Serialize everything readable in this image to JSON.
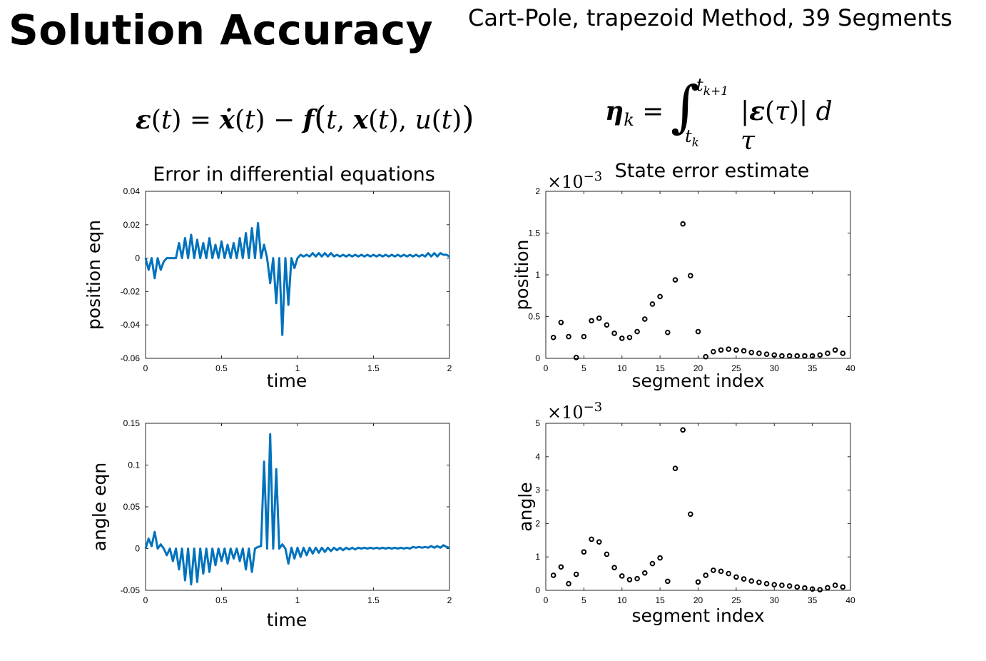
{
  "slide": {
    "title": "Solution Accuracy",
    "subtitle": "Cart-Pole, trapezoid Method, 39 Segments"
  },
  "colors": {
    "line": "#0072bd",
    "marker": "#000000",
    "axis": "#262626"
  },
  "chart_data": [
    {
      "type": "line",
      "title": "Error in differential equations",
      "xlabel": "time",
      "ylabel": "position eqn",
      "xlim": [
        0,
        2
      ],
      "ylim": [
        -0.06,
        0.04
      ],
      "xticks": [
        0,
        0.5,
        1,
        1.5,
        2
      ],
      "xtick_labels": [
        "0",
        "0.5",
        "1",
        "1.5",
        "2"
      ],
      "yticks": [
        -0.06,
        -0.04,
        -0.02,
        0,
        0.02,
        0.04
      ],
      "ytick_labels": [
        "-0.06",
        "-0.04",
        "-0.02",
        "0",
        "0.02",
        "0.04"
      ],
      "grid": false,
      "x": [
        0,
        0.02,
        0.04,
        0.06,
        0.08,
        0.1,
        0.12,
        0.14,
        0.16,
        0.18,
        0.2,
        0.22,
        0.24,
        0.26,
        0.28,
        0.3,
        0.32,
        0.34,
        0.36,
        0.38,
        0.4,
        0.42,
        0.44,
        0.46,
        0.48,
        0.5,
        0.52,
        0.54,
        0.56,
        0.58,
        0.6,
        0.62,
        0.64,
        0.66,
        0.68,
        0.7,
        0.72,
        0.74,
        0.76,
        0.78,
        0.8,
        0.82,
        0.84,
        0.86,
        0.88,
        0.9,
        0.92,
        0.94,
        0.96,
        0.98,
        1.0,
        1.02,
        1.04,
        1.06,
        1.08,
        1.1,
        1.12,
        1.14,
        1.16,
        1.18,
        1.2,
        1.22,
        1.24,
        1.26,
        1.28,
        1.3,
        1.32,
        1.34,
        1.36,
        1.38,
        1.4,
        1.42,
        1.44,
        1.46,
        1.48,
        1.5,
        1.52,
        1.54,
        1.56,
        1.58,
        1.6,
        1.62,
        1.64,
        1.66,
        1.68,
        1.7,
        1.72,
        1.74,
        1.76,
        1.78,
        1.8,
        1.82,
        1.84,
        1.86,
        1.88,
        1.9,
        1.92,
        1.94,
        1.96,
        1.98,
        2.0
      ],
      "y": [
        0,
        -0.007,
        0,
        -0.012,
        0,
        -0.007,
        -0.002,
        0,
        0,
        0,
        0,
        0.009,
        0,
        0.012,
        0,
        0.014,
        0,
        0.011,
        0,
        0.009,
        0,
        0.012,
        0,
        0.008,
        0,
        0.01,
        0,
        0.008,
        0,
        0.009,
        0,
        0.012,
        0,
        0.015,
        0,
        0.018,
        0,
        0.021,
        0,
        0.008,
        0,
        -0.015,
        0,
        -0.027,
        0,
        -0.046,
        0,
        -0.028,
        0,
        -0.006,
        0,
        0.002,
        0.001,
        0.002,
        0.001,
        0.003,
        0.001,
        0.003,
        0.001,
        0.003,
        0.001,
        0.003,
        0.001,
        0.002,
        0.001,
        0.002,
        0.001,
        0.002,
        0.001,
        0.002,
        0.001,
        0.002,
        0.001,
        0.002,
        0.001,
        0.002,
        0.001,
        0.002,
        0.001,
        0.002,
        0.001,
        0.002,
        0.001,
        0.002,
        0.001,
        0.002,
        0.001,
        0.002,
        0.001,
        0.002,
        0.001,
        0.002,
        0.001,
        0.003,
        0.001,
        0.003,
        0.001,
        0.003,
        0.002,
        0.002,
        0.001
      ]
    },
    {
      "type": "scatter",
      "title": "State error estimate",
      "xlabel": "segment index",
      "ylabel": "position",
      "exponent_label": "×10",
      "exponent": "−3",
      "xlim": [
        0,
        40
      ],
      "ylim": [
        0,
        2
      ],
      "xticks": [
        0,
        5,
        10,
        15,
        20,
        25,
        30,
        35,
        40
      ],
      "xtick_labels": [
        "0",
        "5",
        "10",
        "15",
        "20",
        "25",
        "30",
        "35",
        "40"
      ],
      "yticks": [
        0,
        0.5,
        1,
        1.5,
        2
      ],
      "ytick_labels": [
        "0",
        "0.5",
        "1",
        "1.5",
        "2"
      ],
      "grid": false,
      "x": [
        1,
        2,
        3,
        4,
        5,
        6,
        7,
        8,
        9,
        10,
        11,
        12,
        13,
        14,
        15,
        16,
        17,
        18,
        19,
        20,
        21,
        22,
        23,
        24,
        25,
        26,
        27,
        28,
        29,
        30,
        31,
        32,
        33,
        34,
        35,
        36,
        37,
        38,
        39
      ],
      "y": [
        0.25,
        0.43,
        0.26,
        0.01,
        0.26,
        0.45,
        0.48,
        0.4,
        0.3,
        0.24,
        0.25,
        0.32,
        0.47,
        0.65,
        0.74,
        0.31,
        0.94,
        1.61,
        0.99,
        0.32,
        0.02,
        0.08,
        0.1,
        0.11,
        0.1,
        0.09,
        0.07,
        0.06,
        0.05,
        0.04,
        0.03,
        0.03,
        0.03,
        0.03,
        0.03,
        0.04,
        0.06,
        0.1,
        0.06
      ]
    },
    {
      "type": "line",
      "xlabel": "time",
      "ylabel": "angle  eqn",
      "xlim": [
        0,
        2
      ],
      "ylim": [
        -0.05,
        0.15
      ],
      "xticks": [
        0,
        0.5,
        1,
        1.5,
        2
      ],
      "xtick_labels": [
        "0",
        "0.5",
        "1",
        "1.5",
        "2"
      ],
      "yticks": [
        -0.05,
        0,
        0.05,
        0.1,
        0.15
      ],
      "ytick_labels": [
        "-0.05",
        "0",
        "0.05",
        "0.1",
        "0.15"
      ],
      "grid": false,
      "x": [
        0,
        0.02,
        0.04,
        0.06,
        0.08,
        0.1,
        0.12,
        0.14,
        0.16,
        0.18,
        0.2,
        0.22,
        0.24,
        0.26,
        0.28,
        0.3,
        0.32,
        0.34,
        0.36,
        0.38,
        0.4,
        0.42,
        0.44,
        0.46,
        0.48,
        0.5,
        0.52,
        0.54,
        0.56,
        0.58,
        0.6,
        0.62,
        0.64,
        0.66,
        0.68,
        0.7,
        0.72,
        0.74,
        0.76,
        0.78,
        0.8,
        0.82,
        0.84,
        0.86,
        0.88,
        0.9,
        0.92,
        0.94,
        0.96,
        0.98,
        1.0,
        1.02,
        1.04,
        1.06,
        1.08,
        1.1,
        1.12,
        1.14,
        1.16,
        1.18,
        1.2,
        1.22,
        1.24,
        1.26,
        1.28,
        1.3,
        1.32,
        1.34,
        1.36,
        1.38,
        1.4,
        1.42,
        1.44,
        1.46,
        1.48,
        1.5,
        1.52,
        1.54,
        1.56,
        1.58,
        1.6,
        1.62,
        1.64,
        1.66,
        1.68,
        1.7,
        1.72,
        1.74,
        1.76,
        1.78,
        1.8,
        1.82,
        1.84,
        1.86,
        1.88,
        1.9,
        1.92,
        1.94,
        1.96,
        1.98,
        2.0
      ],
      "y": [
        0,
        0.012,
        0.003,
        0.02,
        0,
        0.005,
        0,
        -0.008,
        0,
        -0.015,
        0,
        -0.025,
        0,
        -0.038,
        0,
        -0.043,
        0,
        -0.04,
        0,
        -0.03,
        0,
        -0.028,
        0,
        -0.02,
        0,
        -0.015,
        0,
        -0.018,
        0,
        -0.012,
        0,
        -0.015,
        0,
        -0.025,
        0,
        -0.028,
        0,
        0.002,
        0.003,
        0.104,
        0,
        0.137,
        0,
        0.095,
        0,
        0.005,
        0,
        -0.018,
        0.001,
        -0.012,
        0.001,
        -0.01,
        0.001,
        -0.008,
        0.001,
        -0.006,
        0.001,
        -0.005,
        0.001,
        -0.004,
        0.001,
        -0.003,
        0.001,
        -0.002,
        0.001,
        -0.002,
        0.001,
        -0.001,
        0.001,
        -0.001,
        0.001,
        0.0,
        0.001,
        0.0,
        0.001,
        0.0,
        0.001,
        0.0,
        0.001,
        0.0,
        0.001,
        0.0,
        0.001,
        0.0,
        0.001,
        0.0,
        0.001,
        0.0,
        0.002,
        0.001,
        0.002,
        0.001,
        0.002,
        0.001,
        0.003,
        0.001,
        0.003,
        0.001,
        0.004,
        0.002,
        0.001
      ]
    },
    {
      "type": "scatter",
      "xlabel": "segment index",
      "ylabel": "angle",
      "exponent_label": "×10",
      "exponent": "−3",
      "xlim": [
        0,
        40
      ],
      "ylim": [
        0,
        5
      ],
      "xticks": [
        0,
        5,
        10,
        15,
        20,
        25,
        30,
        35,
        40
      ],
      "xtick_labels": [
        "0",
        "5",
        "10",
        "15",
        "20",
        "25",
        "30",
        "35",
        "40"
      ],
      "yticks": [
        0,
        1,
        2,
        3,
        4,
        5
      ],
      "ytick_labels": [
        "0",
        "1",
        "2",
        "3",
        "4",
        "5"
      ],
      "grid": false,
      "x": [
        1,
        2,
        3,
        4,
        5,
        6,
        7,
        8,
        9,
        10,
        11,
        12,
        13,
        14,
        15,
        16,
        17,
        18,
        19,
        20,
        21,
        22,
        23,
        24,
        25,
        26,
        27,
        28,
        29,
        30,
        31,
        32,
        33,
        34,
        35,
        36,
        37,
        38,
        39
      ],
      "y": [
        0.45,
        0.7,
        0.2,
        0.48,
        1.15,
        1.53,
        1.45,
        1.08,
        0.68,
        0.43,
        0.32,
        0.35,
        0.52,
        0.8,
        0.97,
        0.27,
        3.65,
        4.8,
        2.28,
        0.25,
        0.45,
        0.6,
        0.57,
        0.5,
        0.4,
        0.34,
        0.28,
        0.24,
        0.2,
        0.17,
        0.15,
        0.13,
        0.1,
        0.07,
        0.04,
        0.02,
        0.08,
        0.15,
        0.1
      ]
    }
  ]
}
